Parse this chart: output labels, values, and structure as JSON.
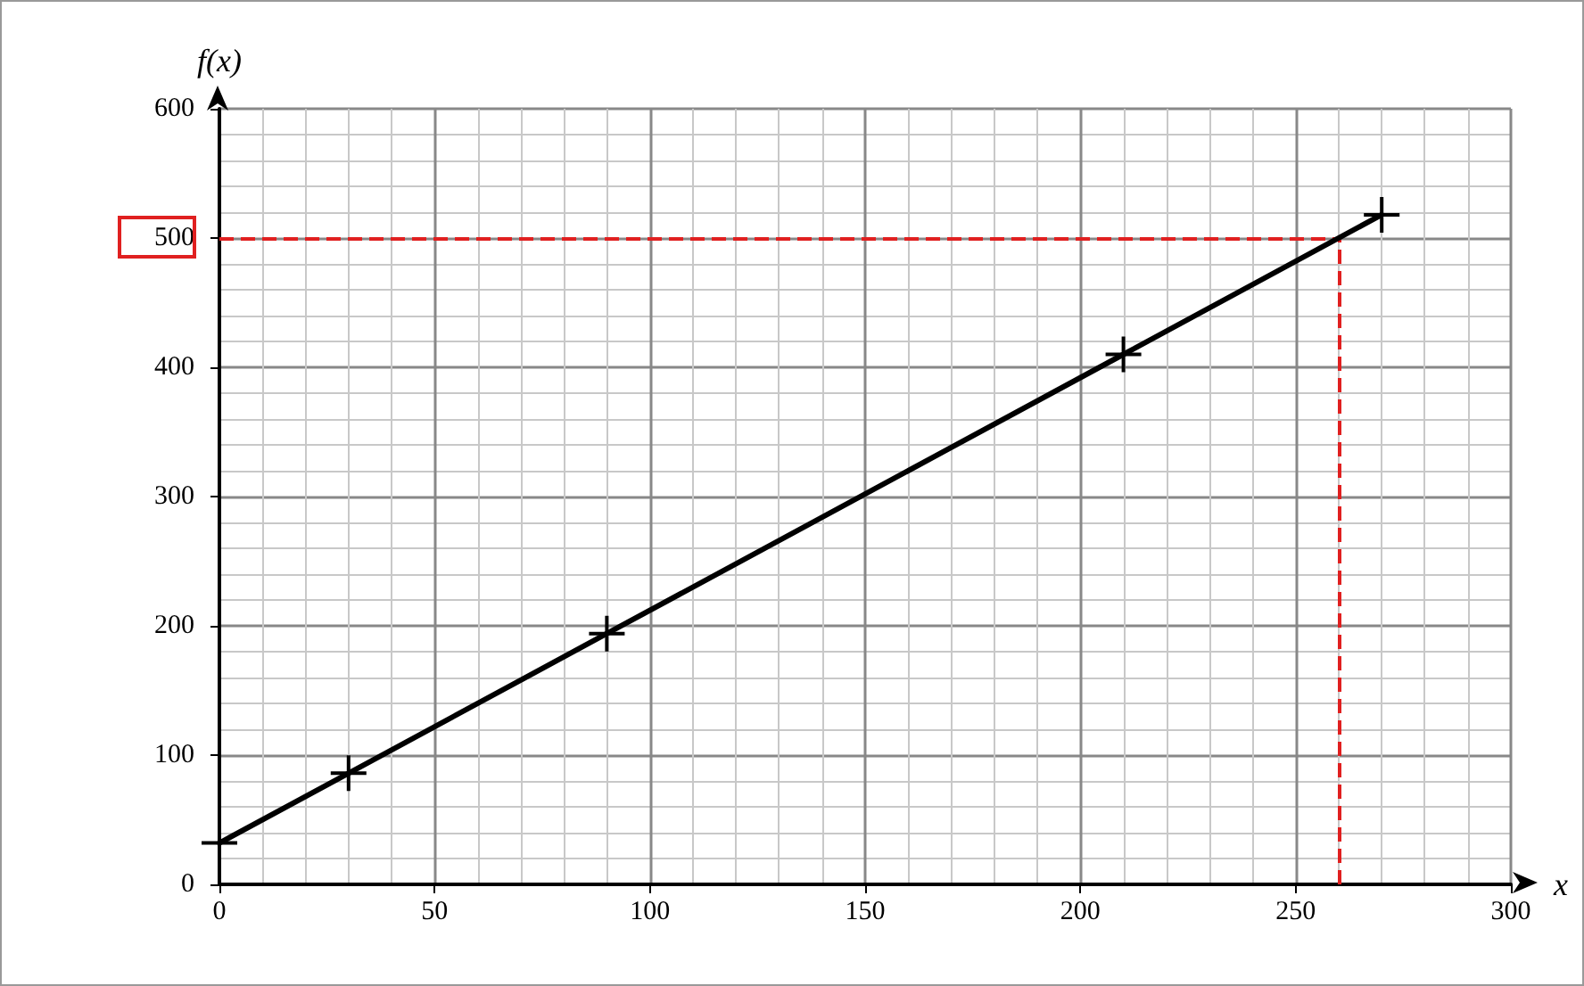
{
  "chart_data": {
    "type": "line",
    "xlabel": "x",
    "ylabel": "f(x)",
    "x": [
      0,
      30,
      90,
      210,
      270
    ],
    "series": [
      {
        "color": "#000000",
        "values": [
          32,
          86,
          194,
          410,
          518
        ]
      }
    ],
    "xlim": [
      0,
      300
    ],
    "xticks": [
      0,
      50,
      100,
      150,
      200,
      250,
      300
    ],
    "ylim": [
      0,
      600
    ],
    "yticks": [
      0,
      100,
      200,
      300,
      400,
      500,
      600
    ],
    "grid": true,
    "marker": "cross",
    "line_style": "solid",
    "ref_lines": [
      {
        "axis": "y",
        "value": 500,
        "color": "#e02020",
        "line_style": "dashed"
      },
      {
        "axis": "x",
        "value": 260,
        "color": "#e02020",
        "line_style": "dashed"
      }
    ]
  }
}
